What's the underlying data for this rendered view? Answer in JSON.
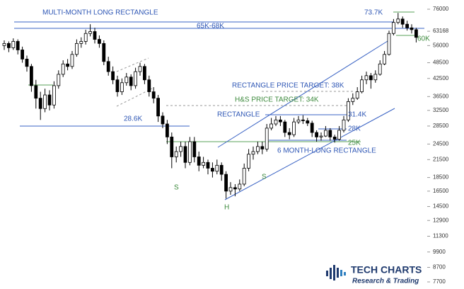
{
  "chart_data": {
    "type": "candlestick",
    "y_scale": "log",
    "ylim": [
      7700,
      76000
    ],
    "yticks": [
      76000,
      63168,
      56000,
      48500,
      42500,
      36500,
      32500,
      28500,
      24500,
      21500,
      18500,
      16500,
      14500,
      12900,
      11300,
      9900,
      8700,
      7700
    ],
    "up_color": "#ffffff",
    "down_color": "#000000",
    "ohlc": [
      [
        56000,
        58500,
        54000,
        57000
      ],
      [
        57000,
        58000,
        53000,
        55000
      ],
      [
        55000,
        59500,
        54000,
        58000
      ],
      [
        58000,
        59000,
        52000,
        54000
      ],
      [
        54000,
        55500,
        48500,
        50000
      ],
      [
        50000,
        51500,
        45000,
        47000
      ],
      [
        47000,
        48000,
        38000,
        40000
      ],
      [
        40000,
        42000,
        33000,
        36000
      ],
      [
        36000,
        38000,
        30000,
        33000
      ],
      [
        33000,
        39000,
        32000,
        37000
      ],
      [
        37000,
        38500,
        32500,
        34000
      ],
      [
        34000,
        41500,
        33000,
        40000
      ],
      [
        40000,
        45500,
        39000,
        44000
      ],
      [
        44000,
        49500,
        43000,
        48000
      ],
      [
        48000,
        50000,
        45500,
        47000
      ],
      [
        47000,
        53500,
        46000,
        52000
      ],
      [
        52000,
        59000,
        51000,
        57000
      ],
      [
        57000,
        60000,
        55000,
        58000
      ],
      [
        58000,
        64000,
        56500,
        62000
      ],
      [
        62000,
        67000,
        60500,
        63000
      ],
      [
        63000,
        65000,
        57000,
        59000
      ],
      [
        59000,
        61000,
        55000,
        57000
      ],
      [
        57000,
        58500,
        47500,
        49000
      ],
      [
        49000,
        51000,
        43500,
        45000
      ],
      [
        45000,
        47000,
        40500,
        42000
      ],
      [
        42000,
        43500,
        36500,
        38000
      ],
      [
        38000,
        42500,
        37000,
        41000
      ],
      [
        41000,
        44500,
        40000,
        43000
      ],
      [
        43000,
        44000,
        38500,
        40000
      ],
      [
        40000,
        46500,
        39000,
        45000
      ],
      [
        45000,
        48500,
        43500,
        47000
      ],
      [
        47000,
        48000,
        40500,
        42000
      ],
      [
        42000,
        43500,
        36500,
        38000
      ],
      [
        38000,
        39500,
        34500,
        36000
      ],
      [
        36000,
        37000,
        29500,
        31000
      ],
      [
        31000,
        32000,
        28000,
        29000
      ],
      [
        29000,
        30000,
        24500,
        26000
      ],
      [
        26000,
        27000,
        20000,
        22000
      ],
      [
        22000,
        24000,
        21000,
        23000
      ],
      [
        23000,
        25000,
        22000,
        24000
      ],
      [
        24000,
        25000,
        20000,
        21000
      ],
      [
        21000,
        26000,
        20500,
        25000
      ],
      [
        25000,
        26000,
        21000,
        22000
      ],
      [
        22000,
        23000,
        19500,
        20500
      ],
      [
        20500,
        22000,
        20000,
        21000
      ],
      [
        21000,
        21500,
        19000,
        20000
      ],
      [
        20000,
        21000,
        18500,
        19500
      ],
      [
        19500,
        21500,
        19000,
        20500
      ],
      [
        20500,
        21000,
        18000,
        19000
      ],
      [
        19000,
        19500,
        15500,
        16500
      ],
      [
        16500,
        17800,
        16000,
        17000
      ],
      [
        17000,
        17500,
        15800,
        16800
      ],
      [
        16800,
        18200,
        16500,
        17500
      ],
      [
        17500,
        20800,
        17200,
        20000
      ],
      [
        20000,
        23500,
        19500,
        22500
      ],
      [
        22500,
        24000,
        21500,
        23000
      ],
      [
        23000,
        25000,
        22500,
        24000
      ],
      [
        24000,
        25000,
        22500,
        23500
      ],
      [
        23500,
        29000,
        23000,
        28000
      ],
      [
        28000,
        30500,
        27500,
        29000
      ],
      [
        29000,
        31000,
        28500,
        30000
      ],
      [
        30000,
        31000,
        28500,
        29500
      ],
      [
        29500,
        30000,
        26000,
        27000
      ],
      [
        27000,
        28000,
        25500,
        26500
      ],
      [
        26500,
        30500,
        26000,
        29500
      ],
      [
        29500,
        31000,
        29000,
        30000
      ],
      [
        30000,
        31200,
        29000,
        29800
      ],
      [
        29800,
        30500,
        28500,
        29200
      ],
      [
        29200,
        29800,
        26000,
        27000
      ],
      [
        27000,
        27500,
        25000,
        26000
      ],
      [
        26000,
        27000,
        25200,
        26200
      ],
      [
        26200,
        28500,
        26000,
        27500
      ],
      [
        27500,
        28000,
        25200,
        26000
      ],
      [
        26000,
        26500,
        24800,
        25500
      ],
      [
        25500,
        28500,
        25200,
        27500
      ],
      [
        27500,
        31000,
        27000,
        30000
      ],
      [
        30000,
        36000,
        29500,
        35000
      ],
      [
        35000,
        37500,
        34000,
        36000
      ],
      [
        36000,
        39500,
        35500,
        38000
      ],
      [
        38000,
        43500,
        37500,
        42000
      ],
      [
        42000,
        45000,
        40500,
        43500
      ],
      [
        43500,
        44500,
        39000,
        42000
      ],
      [
        42000,
        45500,
        41000,
        44000
      ],
      [
        44000,
        49500,
        43500,
        48000
      ],
      [
        48000,
        53500,
        47500,
        52000
      ],
      [
        52000,
        63500,
        51500,
        62000
      ],
      [
        62000,
        70000,
        61000,
        68000
      ],
      [
        68000,
        73700,
        67000,
        70000
      ],
      [
        70000,
        71500,
        65000,
        67000
      ],
      [
        67000,
        69000,
        63500,
        65000
      ],
      [
        65000,
        67000,
        62000,
        64000
      ],
      [
        64000,
        65000,
        57500,
        60000
      ]
    ],
    "annotations": [
      "MULTI-MONTH LONG RECTANGLE",
      "73.7K",
      "65K-68K",
      "60K",
      "28.6K",
      "RECTANGLE PRICE TARGET: 38K",
      "H&S PRICE TARGET: 34K",
      "RECTANGLE",
      "31.4K",
      "28K",
      "25K",
      "6 MONTH-LONG RECTANGLE",
      "S",
      "H",
      "S"
    ]
  },
  "logo": {
    "name": "TECH CHARTS",
    "tagline": "Research & Trading"
  }
}
